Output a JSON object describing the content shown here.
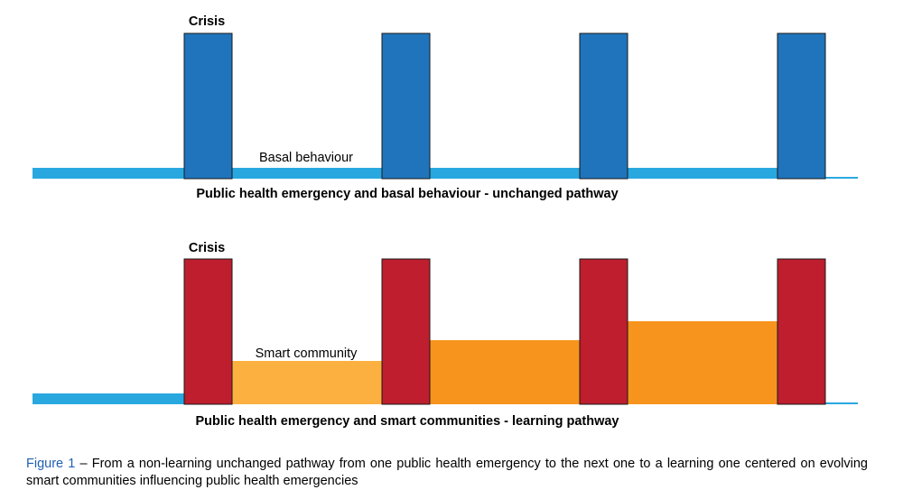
{
  "colors": {
    "baseline": "#29a8e0",
    "crisis_top": "#1f74bc",
    "crisis_bottom": "#be1e2d",
    "smart_light": "#fbb040",
    "smart_dark": "#f7941d",
    "bar_outline": "#1a1a1a",
    "caption_figure_number": "#1f5fb4"
  },
  "top_panel": {
    "crisis_label": "Crisis",
    "basal_label": "Basal behaviour",
    "title": "Public health emergency and basal behaviour - unchanged pathway",
    "crisis_count": 4
  },
  "bottom_panel": {
    "crisis_label": "Crisis",
    "smart_label": "Smart community",
    "title": "Public health emergency and smart communities - learning pathway",
    "crisis_count": 4,
    "smart_community_levels": [
      1,
      2,
      3
    ]
  },
  "caption": {
    "figure_number": "Figure 1",
    "text": " – From a non-learning unchanged pathway from one public health emergency to the next one to a learning one centered on evolving smart communities influencing public health emergencies"
  }
}
